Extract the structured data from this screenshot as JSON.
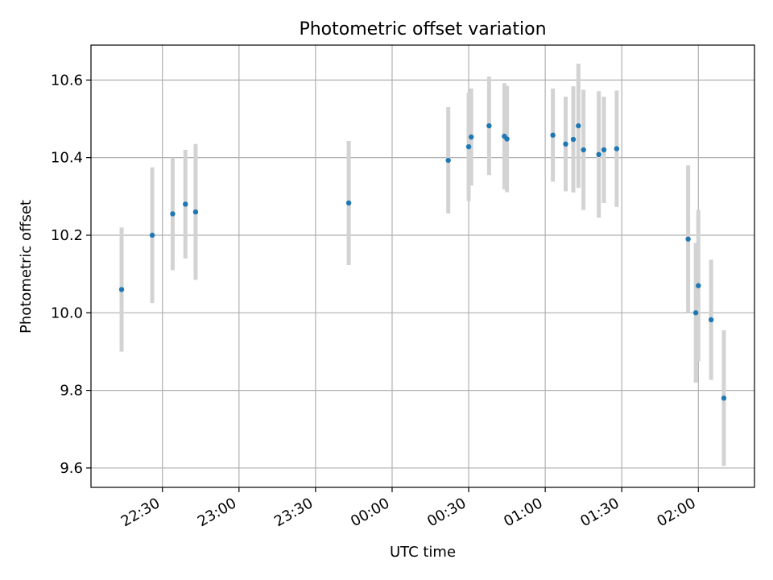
{
  "chart_data": {
    "type": "scatter",
    "title": "Photometric offset variation",
    "xlabel": "UTC time",
    "ylabel": "Photometric offset",
    "xlim": [
      "22:02",
      "02:22"
    ],
    "ylim": [
      9.55,
      10.69
    ],
    "grid": true,
    "x_tick_labels": [
      "22:30",
      "23:00",
      "23:30",
      "00:00",
      "00:30",
      "01:00",
      "01:30",
      "02:00"
    ],
    "y_ticks": [
      9.6,
      9.8,
      10.0,
      10.2,
      10.4,
      10.6
    ],
    "y_tick_labels": [
      "9.6",
      "9.8",
      "10.0",
      "10.2",
      "10.4",
      "10.6"
    ],
    "colors": {
      "point": "#1f77b4",
      "errorbar": "#d3d3d3",
      "grid": "#b0b0b0"
    },
    "points": [
      {
        "x": "22:14",
        "y": 10.06,
        "err": 0.16
      },
      {
        "x": "22:26",
        "y": 10.2,
        "err": 0.175
      },
      {
        "x": "22:34",
        "y": 10.255,
        "err": 0.145
      },
      {
        "x": "22:39",
        "y": 10.28,
        "err": 0.14
      },
      {
        "x": "22:43",
        "y": 10.26,
        "err": 0.175
      },
      {
        "x": "23:43",
        "y": 10.283,
        "err": 0.16
      },
      {
        "x": "00:22",
        "y": 10.393,
        "err": 0.137
      },
      {
        "x": "00:30",
        "y": 10.428,
        "err": 0.14
      },
      {
        "x": "00:31",
        "y": 10.453,
        "err": 0.125
      },
      {
        "x": "00:38",
        "y": 10.482,
        "err": 0.127
      },
      {
        "x": "00:44",
        "y": 10.455,
        "err": 0.137
      },
      {
        "x": "00:45",
        "y": 10.448,
        "err": 0.137
      },
      {
        "x": "01:03",
        "y": 10.458,
        "err": 0.12
      },
      {
        "x": "01:08",
        "y": 10.435,
        "err": 0.122
      },
      {
        "x": "01:11",
        "y": 10.447,
        "err": 0.137
      },
      {
        "x": "01:13",
        "y": 10.482,
        "err": 0.16
      },
      {
        "x": "01:15",
        "y": 10.42,
        "err": 0.155
      },
      {
        "x": "01:21",
        "y": 10.408,
        "err": 0.163
      },
      {
        "x": "01:23",
        "y": 10.42,
        "err": 0.137
      },
      {
        "x": "01:28",
        "y": 10.423,
        "err": 0.15
      },
      {
        "x": "01:56",
        "y": 10.19,
        "err": 0.19
      },
      {
        "x": "01:59",
        "y": 10.0,
        "err": 0.18
      },
      {
        "x": "02:00",
        "y": 10.07,
        "err": 0.195
      },
      {
        "x": "02:05",
        "y": 9.982,
        "err": 0.155
      },
      {
        "x": "02:10",
        "y": 9.78,
        "err": 0.175
      }
    ]
  }
}
